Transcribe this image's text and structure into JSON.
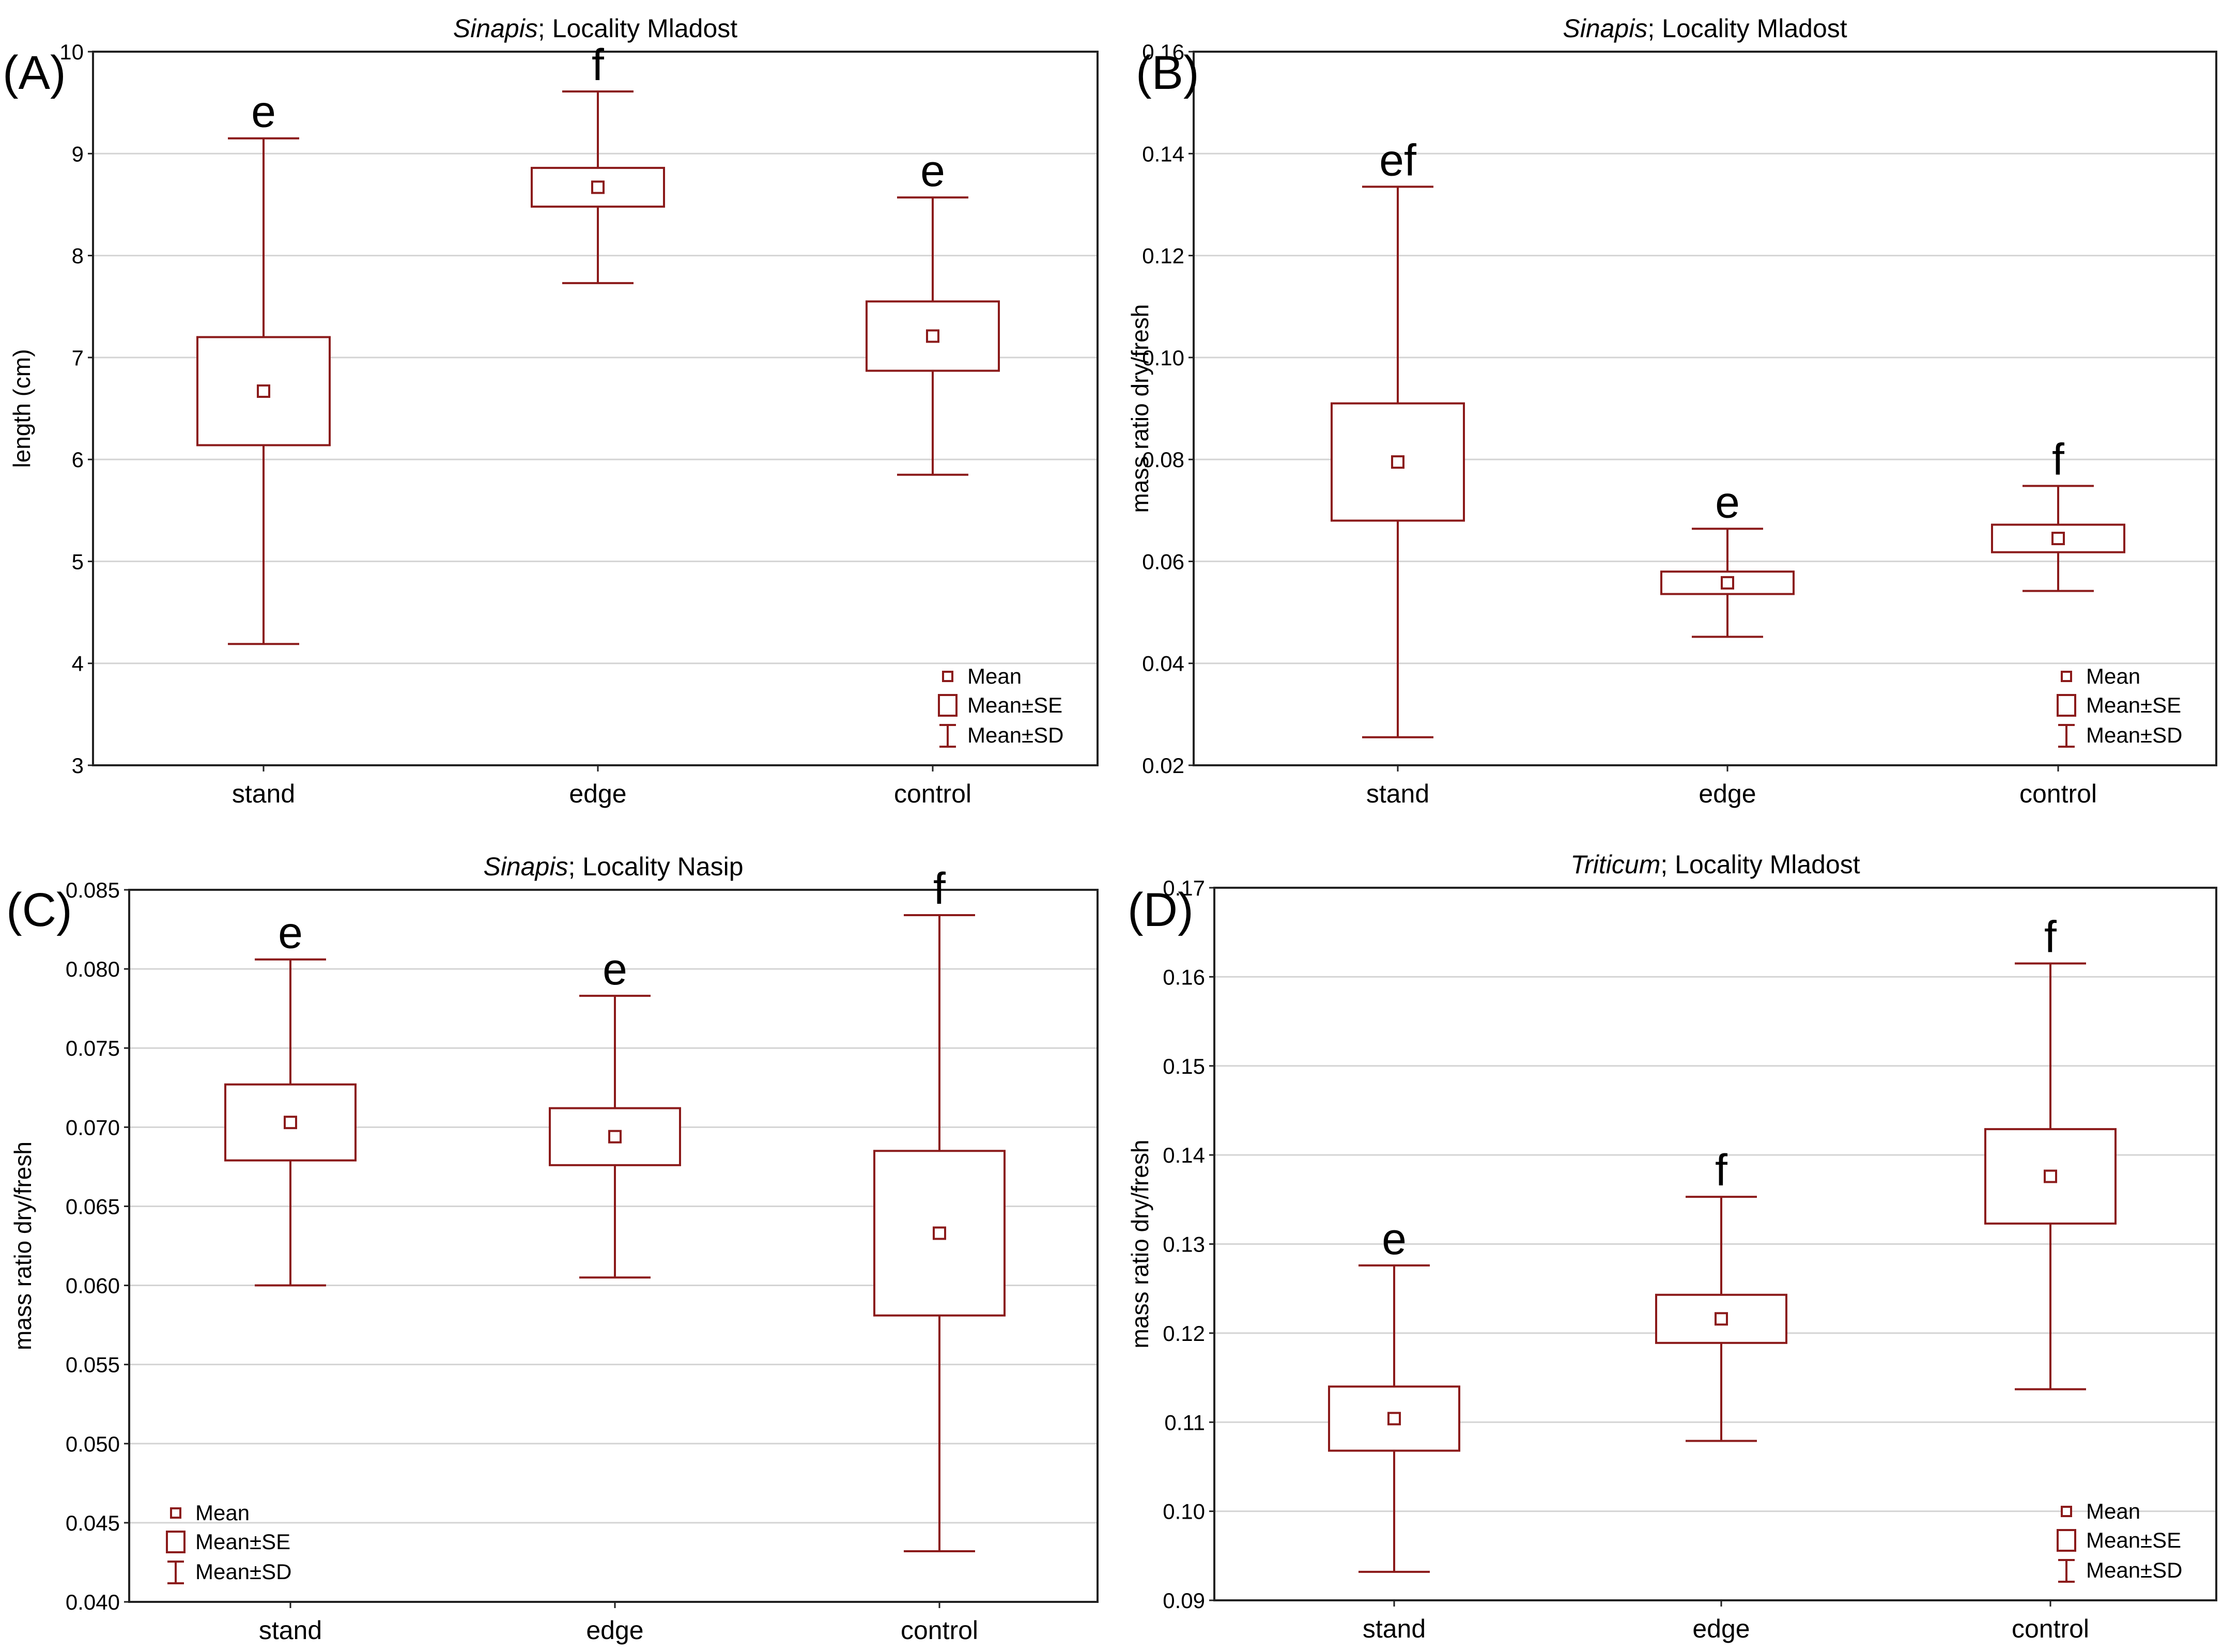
{
  "colors": {
    "series": "#8b1a1a",
    "grid": "#d4d4d4",
    "frame": "#222222",
    "text": "#000000"
  },
  "legend_labels": {
    "mean": "Mean",
    "se": "Mean±SE",
    "sd": "Mean±SD"
  },
  "chart_data": [
    {
      "type": "boxplot",
      "panel_label": "(A)",
      "title_italic": "Sinapis",
      "title_rest": "; Locality Mladost",
      "ylabel": "length (cm)",
      "xlabel": "",
      "ylim": [
        3,
        10
      ],
      "yticks": [
        "3",
        "4",
        "5",
        "6",
        "7",
        "8",
        "9",
        "10"
      ],
      "categories": [
        "stand",
        "edge",
        "control"
      ],
      "mean": [
        6.67,
        8.67,
        7.21
      ],
      "se": [
        0.53,
        0.19,
        0.34
      ],
      "sd": [
        2.48,
        0.94,
        1.36
      ],
      "letters": [
        "e",
        "f",
        "e"
      ],
      "legend_position": "bottom-right",
      "grid": true
    },
    {
      "type": "boxplot",
      "panel_label": "(B)",
      "title_italic": "Sinapis",
      "title_rest": "; Locality Mladost",
      "ylabel": "mass ratio dry/fresh",
      "xlabel": "",
      "ylim": [
        0.02,
        0.16
      ],
      "yticks": [
        "0.02",
        "0.04",
        "0.06",
        "0.08",
        "0.10",
        "0.12",
        "0.14",
        "0.16"
      ],
      "categories": [
        "stand",
        "edge",
        "control"
      ],
      "mean": [
        0.0795,
        0.0558,
        0.0645
      ],
      "se": [
        0.0115,
        0.0022,
        0.0027
      ],
      "sd": [
        0.054,
        0.0106,
        0.0103
      ],
      "letters": [
        "ef",
        "e",
        "f"
      ],
      "legend_position": "bottom-right",
      "grid": true
    },
    {
      "type": "boxplot",
      "panel_label": "(C)",
      "title_italic": "Sinapis",
      "title_rest": "; Locality Nasip",
      "ylabel": "mass ratio dry/fresh",
      "xlabel": "",
      "ylim": [
        0.04,
        0.085
      ],
      "yticks": [
        "0.040",
        "0.045",
        "0.050",
        "0.055",
        "0.060",
        "0.065",
        "0.070",
        "0.075",
        "0.080",
        "0.085"
      ],
      "categories": [
        "stand",
        "edge",
        "control"
      ],
      "mean": [
        0.0703,
        0.0694,
        0.0633
      ],
      "se": [
        0.0024,
        0.0018,
        0.0052
      ],
      "sd": [
        0.0103,
        0.0089,
        0.0201
      ],
      "letters": [
        "e",
        "e",
        "f"
      ],
      "legend_position": "bottom-left",
      "grid": true
    },
    {
      "type": "boxplot",
      "panel_label": "(D)",
      "title_italic": "Triticum",
      "title_rest": "; Locality Mladost",
      "ylabel": "mass ratio dry/fresh",
      "xlabel": "",
      "ylim": [
        0.09,
        0.17
      ],
      "yticks": [
        "0.09",
        "0.10",
        "0.11",
        "0.12",
        "0.13",
        "0.14",
        "0.15",
        "0.16",
        "0.17"
      ],
      "categories": [
        "stand",
        "edge",
        "control"
      ],
      "mean": [
        0.1104,
        0.1216,
        0.1376
      ],
      "se": [
        0.0036,
        0.0027,
        0.0053
      ],
      "sd": [
        0.0172,
        0.0137,
        0.0239
      ],
      "letters": [
        "e",
        "f",
        "f"
      ],
      "legend_position": "bottom-right",
      "grid": true
    }
  ]
}
